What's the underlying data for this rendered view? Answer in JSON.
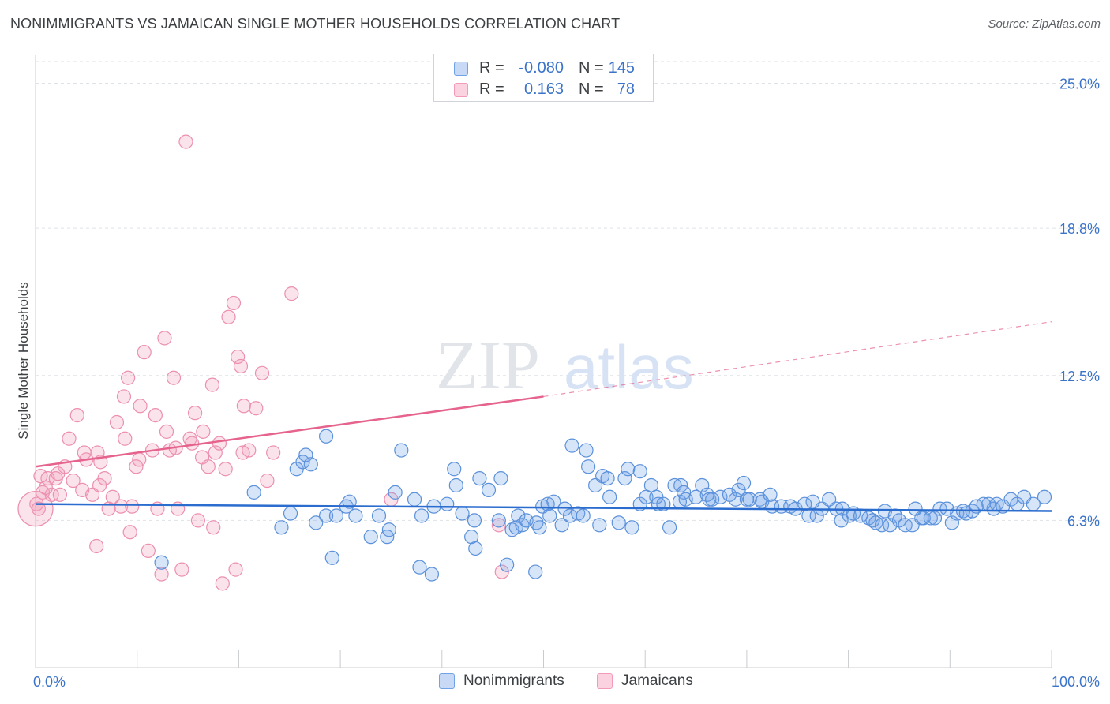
{
  "title": "NONIMMIGRANTS VS JAMAICAN SINGLE MOTHER HOUSEHOLDS CORRELATION CHART",
  "source": "Source: ZipAtlas.com",
  "watermark": {
    "zip": "ZIP",
    "atlas": "atlas"
  },
  "legend_top": {
    "rows": [
      {
        "r_label": "R =",
        "r_value": "-0.080",
        "n_label": "N =",
        "n_value": "145",
        "color": "#6fa2e6"
      },
      {
        "r_label": "R =",
        "r_value": "0.163",
        "n_label": "N =",
        "n_value": "78",
        "color": "#f29ab8"
      }
    ]
  },
  "legend_bottom": {
    "items": [
      "Nonimmigrants",
      "Jamaicans"
    ]
  },
  "chart_data": {
    "type": "scatter",
    "ylabel": "Single Mother Households",
    "xlabel": "",
    "x_tick_labels": [
      "0.0%",
      "100.0%"
    ],
    "y_tick_labels": [
      "25.0%",
      "18.8%",
      "12.5%",
      "6.3%"
    ],
    "y_ticks": [
      25.0,
      18.8,
      12.5,
      6.3
    ],
    "xlim": [
      0,
      100
    ],
    "ylim": [
      0,
      26.2
    ],
    "grid": true,
    "colors": {
      "Nonimmigrants": "#6fa2e6",
      "Jamaicans": "#f29ab8",
      "blue_line": "#2b6ccf",
      "pink_line": "#e5638d"
    },
    "trend_lines": {
      "Nonimmigrants": {
        "x0": 0,
        "y0": 7.0,
        "x1": 100,
        "y1": 6.7
      },
      "Jamaicans": {
        "x0": 0,
        "y0": 8.6,
        "x1": 50,
        "y1": 11.6,
        "dashed_to_x": 100,
        "dashed_to_y": 14.8
      }
    },
    "series": [
      {
        "name": "Nonimmigrants",
        "points": [
          [
            12.4,
            4.5
          ],
          [
            21.5,
            7.5
          ],
          [
            24.2,
            6.0
          ],
          [
            25.1,
            6.6
          ],
          [
            25.7,
            8.5
          ],
          [
            26.3,
            8.8
          ],
          [
            26.6,
            9.1
          ],
          [
            27.1,
            8.7
          ],
          [
            27.6,
            6.2
          ],
          [
            28.6,
            6.5
          ],
          [
            28.6,
            9.9
          ],
          [
            29.2,
            4.7
          ],
          [
            29.6,
            6.5
          ],
          [
            30.6,
            6.9
          ],
          [
            30.9,
            7.1
          ],
          [
            31.5,
            6.5
          ],
          [
            33.0,
            5.6
          ],
          [
            33.8,
            6.5
          ],
          [
            34.6,
            5.6
          ],
          [
            34.8,
            5.9
          ],
          [
            35.4,
            7.5
          ],
          [
            36.0,
            9.3
          ],
          [
            37.3,
            7.2
          ],
          [
            37.8,
            4.3
          ],
          [
            38.0,
            6.5
          ],
          [
            39.0,
            4.0
          ],
          [
            39.2,
            6.9
          ],
          [
            40.5,
            7.0
          ],
          [
            41.2,
            8.5
          ],
          [
            41.4,
            7.8
          ],
          [
            42.0,
            6.6
          ],
          [
            42.9,
            5.6
          ],
          [
            43.2,
            6.3
          ],
          [
            43.3,
            5.1
          ],
          [
            43.7,
            8.1
          ],
          [
            44.6,
            7.6
          ],
          [
            45.6,
            6.3
          ],
          [
            45.8,
            8.1
          ],
          [
            46.4,
            4.4
          ],
          [
            46.9,
            5.9
          ],
          [
            47.3,
            6.0
          ],
          [
            47.5,
            6.5
          ],
          [
            47.9,
            6.1
          ],
          [
            48.3,
            6.3
          ],
          [
            49.2,
            4.1
          ],
          [
            49.3,
            6.2
          ],
          [
            49.6,
            6.0
          ],
          [
            49.9,
            6.9
          ],
          [
            50.4,
            7.0
          ],
          [
            50.6,
            6.5
          ],
          [
            51.0,
            7.1
          ],
          [
            51.8,
            6.1
          ],
          [
            52.1,
            6.8
          ],
          [
            52.6,
            6.5
          ],
          [
            52.8,
            9.5
          ],
          [
            53.4,
            6.6
          ],
          [
            53.9,
            6.5
          ],
          [
            54.2,
            9.3
          ],
          [
            54.4,
            8.6
          ],
          [
            55.1,
            7.8
          ],
          [
            55.5,
            6.1
          ],
          [
            55.8,
            8.2
          ],
          [
            56.3,
            8.1
          ],
          [
            56.5,
            7.3
          ],
          [
            57.4,
            6.2
          ],
          [
            58.0,
            8.1
          ],
          [
            58.3,
            8.5
          ],
          [
            58.7,
            6.0
          ],
          [
            59.5,
            8.4
          ],
          [
            59.5,
            7.0
          ],
          [
            60.1,
            7.3
          ],
          [
            60.6,
            7.8
          ],
          [
            61.1,
            7.3
          ],
          [
            61.3,
            7.0
          ],
          [
            61.8,
            7.0
          ],
          [
            62.4,
            6.0
          ],
          [
            62.9,
            7.8
          ],
          [
            63.4,
            7.1
          ],
          [
            63.5,
            7.8
          ],
          [
            63.8,
            7.5
          ],
          [
            64.0,
            7.2
          ],
          [
            65.0,
            7.3
          ],
          [
            65.6,
            7.8
          ],
          [
            66.1,
            7.4
          ],
          [
            66.3,
            7.2
          ],
          [
            66.6,
            7.2
          ],
          [
            67.4,
            7.3
          ],
          [
            68.3,
            7.4
          ],
          [
            68.9,
            7.2
          ],
          [
            69.2,
            7.6
          ],
          [
            69.7,
            7.9
          ],
          [
            70.0,
            7.2
          ],
          [
            70.3,
            7.2
          ],
          [
            71.3,
            7.2
          ],
          [
            71.5,
            7.1
          ],
          [
            72.3,
            7.4
          ],
          [
            72.5,
            6.9
          ],
          [
            73.4,
            6.9
          ],
          [
            74.3,
            6.9
          ],
          [
            74.8,
            6.8
          ],
          [
            75.7,
            7.0
          ],
          [
            76.1,
            6.5
          ],
          [
            76.5,
            7.1
          ],
          [
            76.9,
            6.5
          ],
          [
            77.4,
            6.8
          ],
          [
            78.1,
            7.2
          ],
          [
            78.8,
            6.8
          ],
          [
            79.3,
            6.3
          ],
          [
            79.4,
            6.8
          ],
          [
            80.1,
            6.5
          ],
          [
            80.5,
            6.6
          ],
          [
            81.2,
            6.5
          ],
          [
            82.0,
            6.4
          ],
          [
            82.4,
            6.3
          ],
          [
            82.7,
            6.2
          ],
          [
            83.3,
            6.1
          ],
          [
            83.6,
            6.7
          ],
          [
            84.1,
            6.1
          ],
          [
            84.6,
            6.5
          ],
          [
            85.0,
            6.3
          ],
          [
            85.6,
            6.1
          ],
          [
            86.3,
            6.1
          ],
          [
            86.6,
            6.8
          ],
          [
            87.2,
            6.4
          ],
          [
            87.4,
            6.4
          ],
          [
            88.1,
            6.4
          ],
          [
            88.5,
            6.4
          ],
          [
            89.0,
            6.8
          ],
          [
            89.7,
            6.8
          ],
          [
            90.2,
            6.2
          ],
          [
            90.7,
            6.6
          ],
          [
            91.3,
            6.7
          ],
          [
            91.6,
            6.6
          ],
          [
            92.2,
            6.7
          ],
          [
            92.6,
            6.9
          ],
          [
            93.3,
            7.0
          ],
          [
            93.8,
            7.0
          ],
          [
            94.3,
            6.8
          ],
          [
            94.6,
            7.0
          ],
          [
            95.2,
            6.9
          ],
          [
            96.0,
            7.2
          ],
          [
            96.6,
            7.0
          ],
          [
            97.3,
            7.3
          ],
          [
            98.2,
            7.0
          ],
          [
            99.3,
            7.3
          ]
        ]
      },
      {
        "name": "Jamaicans",
        "points": [
          [
            0.1,
            7.0
          ],
          [
            0.3,
            6.8
          ],
          [
            0.7,
            7.5
          ],
          [
            1.2,
            8.1
          ],
          [
            1.6,
            7.4
          ],
          [
            2.0,
            8.1
          ],
          [
            2.4,
            7.4
          ],
          [
            2.9,
            8.6
          ],
          [
            3.3,
            9.8
          ],
          [
            3.7,
            8.0
          ],
          [
            4.1,
            10.8
          ],
          [
            4.6,
            7.6
          ],
          [
            5.0,
            8.9
          ],
          [
            5.6,
            7.4
          ],
          [
            6.0,
            5.2
          ],
          [
            6.3,
            7.8
          ],
          [
            6.4,
            8.8
          ],
          [
            6.8,
            8.1
          ],
          [
            7.2,
            6.8
          ],
          [
            7.6,
            7.3
          ],
          [
            8.0,
            10.5
          ],
          [
            8.4,
            6.9
          ],
          [
            8.7,
            11.6
          ],
          [
            9.1,
            12.4
          ],
          [
            9.5,
            6.9
          ],
          [
            9.9,
            8.6
          ],
          [
            10.3,
            11.2
          ],
          [
            10.7,
            13.5
          ],
          [
            11.1,
            5.0
          ],
          [
            11.5,
            9.3
          ],
          [
            12.0,
            6.8
          ],
          [
            12.4,
            4.0
          ],
          [
            12.7,
            14.1
          ],
          [
            13.2,
            9.3
          ],
          [
            13.6,
            12.4
          ],
          [
            14.0,
            6.8
          ],
          [
            14.4,
            4.2
          ],
          [
            14.8,
            22.5
          ],
          [
            15.2,
            9.8
          ],
          [
            15.7,
            10.9
          ],
          [
            16.0,
            6.3
          ],
          [
            16.4,
            9.0
          ],
          [
            17.0,
            8.6
          ],
          [
            17.4,
            12.1
          ],
          [
            17.7,
            9.2
          ],
          [
            18.1,
            9.6
          ],
          [
            18.7,
            8.5
          ],
          [
            19.0,
            15.0
          ],
          [
            19.5,
            15.6
          ],
          [
            19.9,
            13.3
          ],
          [
            20.2,
            12.9
          ],
          [
            20.5,
            11.2
          ],
          [
            21.0,
            9.3
          ],
          [
            21.7,
            11.1
          ],
          [
            22.3,
            12.6
          ],
          [
            22.8,
            8.0
          ],
          [
            23.4,
            9.2
          ],
          [
            25.2,
            16.0
          ],
          [
            35.0,
            7.2
          ],
          [
            45.6,
            6.1
          ],
          [
            45.9,
            4.1
          ],
          [
            0.5,
            8.2
          ],
          [
            1.0,
            7.7
          ],
          [
            2.2,
            8.3
          ],
          [
            4.8,
            9.2
          ],
          [
            6.1,
            9.2
          ],
          [
            8.8,
            9.8
          ],
          [
            10.2,
            8.9
          ],
          [
            12.9,
            10.1
          ],
          [
            13.8,
            9.4
          ],
          [
            17.5,
            6.0
          ],
          [
            18.4,
            3.6
          ],
          [
            19.7,
            4.2
          ],
          [
            20.4,
            9.2
          ],
          [
            15.4,
            9.6
          ],
          [
            11.8,
            10.8
          ],
          [
            16.5,
            10.1
          ],
          [
            9.3,
            5.8
          ]
        ]
      }
    ]
  }
}
